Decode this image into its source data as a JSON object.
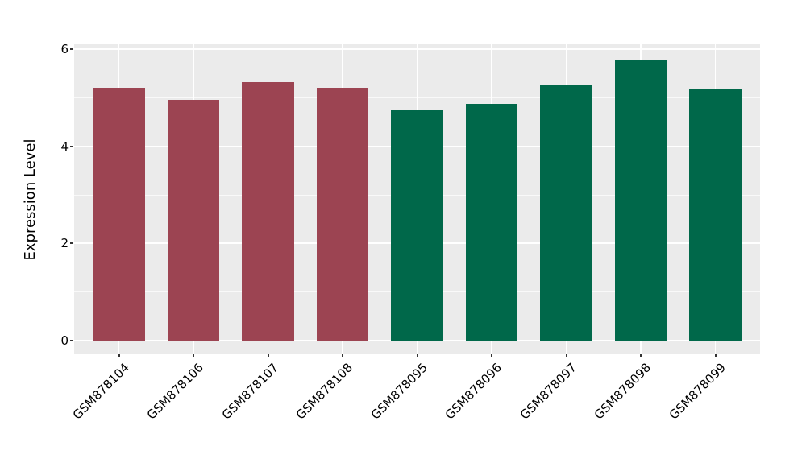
{
  "chart_data": {
    "type": "bar",
    "title": "",
    "xlabel": "",
    "ylabel": "Expression Level",
    "categories": [
      "GSM878104",
      "GSM878106",
      "GSM878107",
      "GSM878108",
      "GSM878095",
      "GSM878096",
      "GSM878097",
      "GSM878098",
      "GSM878099"
    ],
    "values": [
      5.2,
      4.95,
      5.32,
      5.21,
      4.74,
      4.87,
      5.26,
      5.78,
      5.19
    ],
    "bar_colors": [
      "#9C4452",
      "#9C4452",
      "#9C4452",
      "#9C4452",
      "#00684A",
      "#00684A",
      "#00684A",
      "#00684A",
      "#00684A"
    ],
    "group_palette": {
      "maroon": "#9C4452",
      "green": "#00684A"
    },
    "yticks": [
      0,
      2,
      4,
      6
    ],
    "yminor": [
      1,
      3,
      5
    ],
    "ylim": [
      -0.28,
      6.1
    ],
    "bar_width_fraction": 0.7,
    "grid": true,
    "legend": false,
    "x_label_rotation_deg": 45,
    "panel_bg": "#EBEBEB",
    "grid_color": "#FFFFFF",
    "text_color": "#000000",
    "tick_color": "#333333",
    "figure_bg": "#FFFFFF"
  }
}
